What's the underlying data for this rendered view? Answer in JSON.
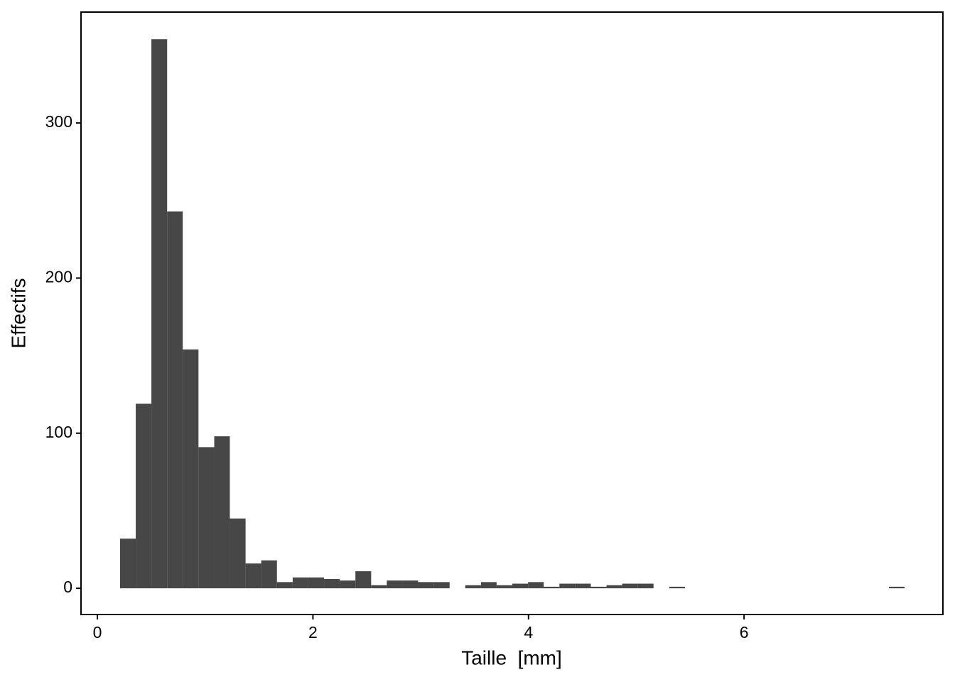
{
  "chart_data": {
    "type": "histogram",
    "xlabel": "Taille  [mm]",
    "ylabel": "Effectifs",
    "bins": [
      0.21,
      0.356,
      0.501,
      0.647,
      0.792,
      0.938,
      1.084,
      1.229,
      1.375,
      1.52,
      1.666,
      1.812,
      1.957,
      2.103,
      2.248,
      2.394,
      2.54,
      2.685,
      2.831,
      2.976,
      3.122,
      3.268,
      3.413,
      3.559,
      3.704,
      3.85,
      3.996,
      4.141,
      4.287,
      4.432,
      4.578,
      4.724,
      4.869,
      5.015,
      5.16,
      5.306,
      5.452,
      5.597,
      5.743,
      5.888,
      6.034,
      6.18,
      6.325,
      6.471,
      6.616,
      6.762,
      6.908,
      7.053,
      7.199,
      7.344,
      7.49
    ],
    "values": [
      32,
      119,
      354,
      243,
      154,
      91,
      98,
      45,
      16,
      18,
      4,
      7,
      7,
      6,
      5,
      11,
      2,
      5,
      5,
      4,
      4,
      0,
      2,
      4,
      2,
      3,
      4,
      1,
      3,
      3,
      1,
      2,
      3,
      3,
      0,
      1,
      0,
      0,
      0,
      0,
      0,
      0,
      0,
      0,
      0,
      0,
      0,
      0,
      0,
      1
    ],
    "color": "#474747",
    "xlim": [
      -0.152,
      7.845
    ],
    "ylim": [
      -16.9,
      371.5
    ],
    "xticks": [
      0,
      2,
      4,
      6
    ],
    "yticks": [
      0,
      100,
      200,
      300
    ],
    "grid": false
  }
}
